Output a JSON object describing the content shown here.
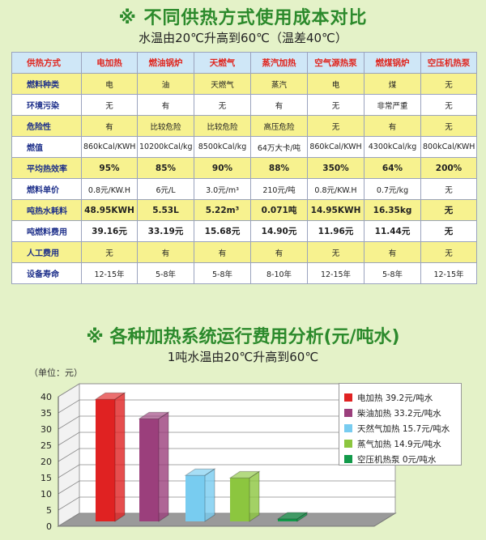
{
  "table_section": {
    "title": "※ 不同供热方式使用成本对比",
    "subtitle": "水温由20℃升高到60℃（温差40℃）",
    "header": [
      "供热方式",
      "电加热",
      "燃油锅炉",
      "天燃气",
      "蒸汽加热",
      "空气源热泵",
      "燃煤锅炉",
      "空压机热泵"
    ],
    "rows": [
      {
        "label": "燃料种类",
        "values": [
          "电",
          "油",
          "天燃气",
          "蒸汽",
          "电",
          "煤",
          "无"
        ]
      },
      {
        "label": "环境污染",
        "values": [
          "无",
          "有",
          "无",
          "有",
          "无",
          "非常严重",
          "无"
        ]
      },
      {
        "label": "危险性",
        "values": [
          "有",
          "比较危险",
          "比较危险",
          "高压危险",
          "无",
          "有",
          "无"
        ]
      },
      {
        "label": "燃值",
        "values": [
          "860kCal/KWH",
          "10200kCal/kg",
          "8500kCal/kg",
          "64万大卡/吨",
          "860kCal/KWH",
          "4300kCal/kg",
          "800kCal/KWH"
        ]
      },
      {
        "label": "平均热效率",
        "values": [
          "95%",
          "85%",
          "90%",
          "88%",
          "350%",
          "64%",
          "200%"
        ]
      },
      {
        "label": "燃料单价",
        "values": [
          "0.8元/KW.H",
          "6元/L",
          "3.0元/m³",
          "210元/吨",
          "0.8元/KW.H",
          "0.7元/kg",
          "无"
        ]
      },
      {
        "label": "吨热水耗料",
        "values": [
          "48.95KWH",
          "5.53L",
          "5.22m³",
          "0.071吨",
          "14.95KWH",
          "16.35kg",
          "无"
        ]
      },
      {
        "label": "吨燃料费用",
        "values": [
          "39.16元",
          "33.19元",
          "15.68元",
          "14.90元",
          "11.96元",
          "11.44元",
          "无"
        ]
      },
      {
        "label": "人工费用",
        "values": [
          "无",
          "有",
          "有",
          "有",
          "无",
          "有",
          "无"
        ]
      },
      {
        "label": "设备寿命",
        "values": [
          "12-15年",
          "5-8年",
          "5-8年",
          "8-10年",
          "12-15年",
          "5-8年",
          "12-15年"
        ]
      }
    ]
  },
  "chart_section": {
    "title": "※ 各种加热系统运行费用分析(元/吨水)",
    "subtitle": "1吨水温由20℃升高到60℃",
    "unit_label": "（单位：元）"
  },
  "chart_data": {
    "type": "bar",
    "categories": [
      "电加热",
      "柴油加热",
      "天然气加热",
      "蒸气加热",
      "空压机热泵"
    ],
    "values": [
      39.2,
      33.2,
      15.7,
      14.9,
      0
    ],
    "colors": [
      "#e02222",
      "#9b3f7c",
      "#78ccf0",
      "#8cc63f",
      "#129a4a"
    ],
    "legend": [
      "电加热  39.2元/吨水",
      "柴油加热  33.2元/吨水",
      "天然气加热  15.7元/吨水",
      "蒸气加热  14.9元/吨水",
      "空压机热泵  0元/吨水"
    ],
    "yticks": [
      "0",
      "5",
      "10",
      "15",
      "20",
      "25",
      "30",
      "35",
      "40"
    ],
    "ylim": [
      0,
      40
    ],
    "style": "3d",
    "legend_position": "right",
    "grid": true
  }
}
